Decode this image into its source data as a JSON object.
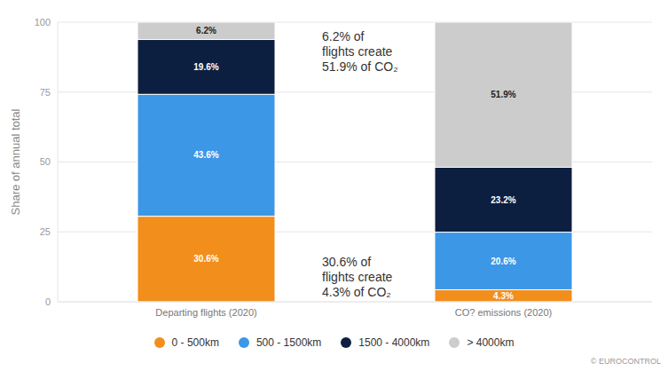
{
  "chart_data": {
    "type": "bar",
    "stacked": true,
    "grid": true,
    "data_labels": true,
    "legend": "bottom",
    "y_label": "Share of annual total",
    "categories": [
      "Departing flights (2020)",
      "CO? emissions (2020)"
    ],
    "series": [
      {
        "name": "0 - 500km",
        "color": "#f28e1c",
        "values": [
          30.6,
          4.3
        ],
        "value_labels": [
          "30.6%",
          "4.3%"
        ]
      },
      {
        "name": "500 - 1500km",
        "color": "#3c97e6",
        "values": [
          43.6,
          20.6
        ],
        "value_labels": [
          "43.6%",
          "20.6%"
        ]
      },
      {
        "name": "1500 - 4000km",
        "color": "#0d1f40",
        "values": [
          19.6,
          23.2
        ],
        "value_labels": [
          "19.6%",
          "23.2%"
        ]
      },
      {
        "name": "> 4000km",
        "color": "#cccccc",
        "values": [
          6.2,
          51.9
        ],
        "value_labels": [
          "6.2%",
          "51.9%"
        ]
      }
    ],
    "ylim": [
      0,
      100
    ],
    "yticks": [
      0,
      25,
      50,
      75,
      100
    ],
    "annotations": [
      [
        "6.2% of",
        "flights create",
        "51.9% of CO₂"
      ],
      [
        "30.6% of",
        "flights create",
        "4.3% of CO₂"
      ]
    ],
    "credit": "© EUROCONTROL"
  }
}
